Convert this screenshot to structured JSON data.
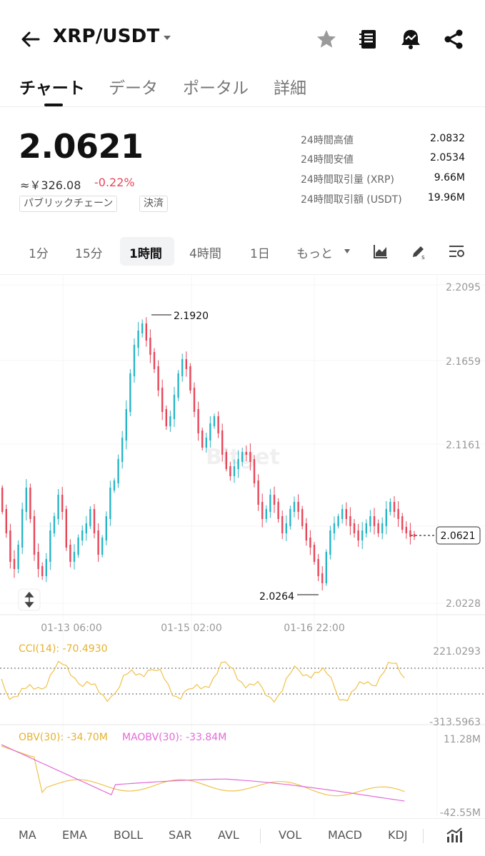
{
  "header": {
    "pair": "XRP/USDT",
    "icons": [
      "back-arrow-icon",
      "star-icon",
      "notebook-icon",
      "alert-bell-icon",
      "share-icon"
    ]
  },
  "tabs": [
    {
      "label": "チャート",
      "active": true
    },
    {
      "label": "データ",
      "active": false
    },
    {
      "label": "ポータル",
      "active": false
    },
    {
      "label": "詳細",
      "active": false
    }
  ],
  "price": {
    "last": "2.0621",
    "fiat": "≈￥326.08",
    "change": "-0.22%",
    "change_color": "#e8475a",
    "tags": [
      "パブリックチェーン",
      "決済"
    ]
  },
  "stats": [
    {
      "label": "24時間高値",
      "value": "2.0832"
    },
    {
      "label": "24時間安値",
      "value": "2.0534"
    },
    {
      "label": "24時間取引量 (XRP)",
      "value": "9.66M"
    },
    {
      "label": "24時間取引額 (USDT)",
      "value": "19.96M"
    }
  ],
  "intervals": [
    {
      "label": "1分",
      "active": false
    },
    {
      "label": "15分",
      "active": false
    },
    {
      "label": "1時間",
      "active": true
    },
    {
      "label": "4時間",
      "active": false
    },
    {
      "label": "1日",
      "active": false
    },
    {
      "label": "もっと",
      "active": false
    }
  ],
  "chart": {
    "price_axis": [
      "2.2095",
      "2.1659",
      "2.1161",
      "2.0228"
    ],
    "current_price_label": "2.0621",
    "high_marker": "2.1920",
    "low_marker": "2.0264",
    "time_axis": [
      "01-13 06:00",
      "01-15 02:00",
      "01-16 22:00"
    ],
    "watermark": "Bitget",
    "colors": {
      "up": "#2ab5c6",
      "down": "#e8475a",
      "cci": "#f0c24a",
      "obv": "#f0c24a",
      "maobv": "#e26bd8"
    }
  },
  "cci": {
    "label": "CCI(14): -70.4930",
    "axis_top": "221.0293",
    "axis_bottom": "-313.5963"
  },
  "obv": {
    "label": "OBV(30): -34.70M",
    "ma_label": "MAOBV(30): -33.84M",
    "axis_top": "11.28M",
    "axis_bottom": "-42.55M"
  },
  "indicators": [
    "MA",
    "EMA",
    "BOLL",
    "SAR",
    "AVL",
    "VOL",
    "MACD",
    "KDJ"
  ]
}
